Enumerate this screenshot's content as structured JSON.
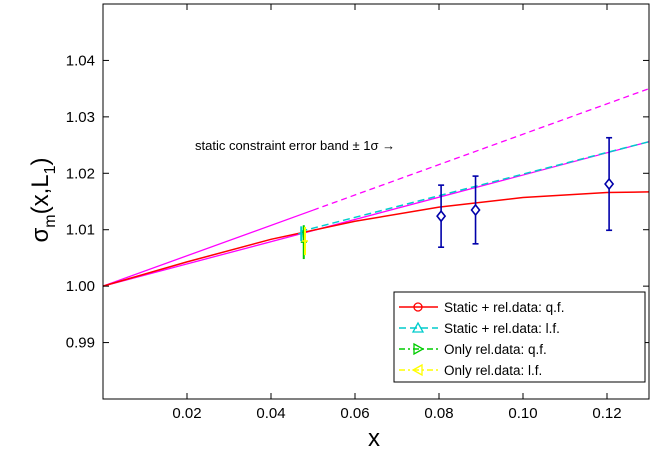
{
  "chart_data": {
    "type": "line",
    "title": "",
    "xlabel": "x",
    "ylabel": "σ_m(x,L_1)",
    "ylabel_main": "σ",
    "ylabel_sub": "m",
    "ylabel_mid": "(x,L",
    "ylabel_sub2": "1",
    "ylabel_end": ")",
    "xlim": [
      0.0,
      0.13
    ],
    "ylim": [
      0.98,
      1.05
    ],
    "xticks": [
      0.02,
      0.04,
      0.06,
      0.08,
      0.1,
      0.12
    ],
    "xtick_labels": [
      "0.02",
      "0.04",
      "0.06",
      "0.08",
      "0.10",
      "0.12"
    ],
    "yticks": [
      0.99,
      1.0,
      1.01,
      1.02,
      1.03,
      1.04
    ],
    "ytick_labels": [
      "0.99",
      "1.00",
      "1.01",
      "1.02",
      "1.03",
      "1.04"
    ],
    "grid": false,
    "legend_position": "bottom-right",
    "series": [
      {
        "name": "Static + rel.data: q.f.",
        "color": "#ff0000",
        "marker": "circle",
        "style": "solid",
        "x": [
          0.0,
          0.02,
          0.04,
          0.06,
          0.08,
          0.1,
          0.12,
          0.13
        ],
        "y": [
          1.0,
          1.0043,
          1.0083,
          1.0115,
          1.014,
          1.0157,
          1.0166,
          1.0167
        ]
      },
      {
        "name": "Static + rel.data: l.f.",
        "color": "#00cccc",
        "marker": "triangle-up",
        "style": "dashed",
        "x": [
          0.047,
          0.13
        ],
        "y": [
          1.0097,
          1.0256
        ]
      },
      {
        "name": "Only rel.data: q.f.",
        "color": "#00cc00",
        "marker": "triangle-right",
        "style": "dashdot",
        "x": [
          0.0476,
          0.0478
        ],
        "y": [
          1.0097,
          1.0083
        ]
      },
      {
        "name": "Only rel.data: l.f.",
        "color": "#ffff00",
        "marker": "triangle-left",
        "style": "dashdot",
        "x": [
          0.0478,
          0.0481
        ],
        "y": [
          1.009,
          1.0075
        ]
      }
    ],
    "constraint_band": {
      "color": "#ff00ff",
      "x": [
        0.0,
        0.13
      ],
      "lower_y": [
        1.0,
        1.0256
      ],
      "upper_y": [
        1.0,
        1.035
      ],
      "solid_until_x": 0.05
    },
    "data_points": {
      "color": "#0000aa",
      "marker": "diamond",
      "points": [
        {
          "x": 0.0805,
          "y": 1.0124,
          "err": 0.0055
        },
        {
          "x": 0.0887,
          "y": 1.0135,
          "err": 0.006
        },
        {
          "x": 0.1205,
          "y": 1.0181,
          "err": 0.0082
        }
      ]
    },
    "low_x_errorbars": [
      {
        "x": 0.0472,
        "y": 1.0093,
        "err": 0.0013,
        "color": "#00cccc"
      },
      {
        "x": 0.0478,
        "y": 1.0078,
        "err": 0.003,
        "color": "#00cc00"
      },
      {
        "x": 0.0481,
        "y": 1.008,
        "err": 0.0025,
        "color": "#ffff00"
      }
    ],
    "annotations": [
      {
        "text": "static constraint error band ± 1σ →",
        "x": 0.0335,
        "y": 1.0247
      }
    ]
  },
  "colors": {
    "axes": "#000000",
    "background": "#ffffff"
  }
}
